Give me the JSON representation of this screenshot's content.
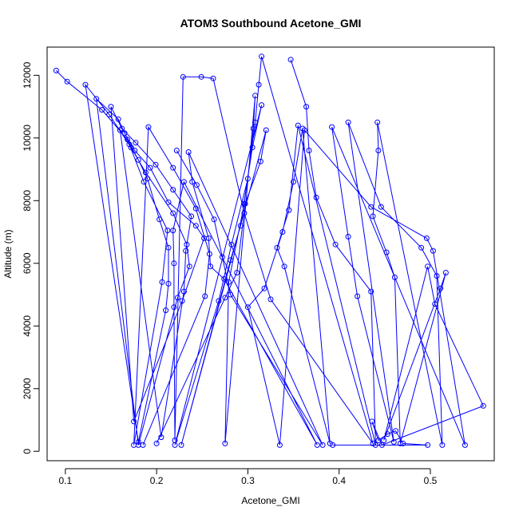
{
  "chart_data": {
    "type": "line",
    "title": "ATOM3 Southbound Acetone_GMI",
    "xlabel": "Acetone_GMI",
    "ylabel": "Altitude (m)",
    "xlim": [
      0.08,
      0.57
    ],
    "ylim": [
      -300,
      12900
    ],
    "x_ticks": [
      0.1,
      0.2,
      0.3,
      0.4,
      0.5
    ],
    "x_tick_labels": [
      "0.1",
      "0.2",
      "0.3",
      "0.4",
      "0.5"
    ],
    "y_ticks": [
      0,
      2000,
      4000,
      6000,
      8000,
      10000,
      12000
    ],
    "y_tick_labels": [
      "0",
      "2000",
      "4000",
      "6000",
      "8000",
      "10000",
      "12000"
    ],
    "grid": false,
    "series": [
      {
        "color": "#0000ff",
        "marker": "open-circle",
        "points": [
          {
            "x": 0.09,
            "y": 12150
          },
          {
            "x": 0.102,
            "y": 11800
          },
          {
            "x": 0.14,
            "y": 10900
          },
          {
            "x": 0.168,
            "y": 9950
          },
          {
            "x": 0.18,
            "y": 9300
          },
          {
            "x": 0.19,
            "y": 8700
          },
          {
            "x": 0.203,
            "y": 7400
          },
          {
            "x": 0.213,
            "y": 6500
          },
          {
            "x": 0.213,
            "y": 5350
          },
          {
            "x": 0.21,
            "y": 4500
          },
          {
            "x": 0.18,
            "y": 300
          },
          {
            "x": 0.122,
            "y": 11700
          },
          {
            "x": 0.148,
            "y": 10750
          },
          {
            "x": 0.172,
            "y": 9700
          },
          {
            "x": 0.188,
            "y": 8900
          },
          {
            "x": 0.218,
            "y": 7600
          },
          {
            "x": 0.233,
            "y": 6600
          },
          {
            "x": 0.236,
            "y": 5900
          },
          {
            "x": 0.223,
            "y": 4900
          },
          {
            "x": 0.18,
            "y": 200
          },
          {
            "x": 0.134,
            "y": 11250
          },
          {
            "x": 0.158,
            "y": 10600
          },
          {
            "x": 0.165,
            "y": 10150
          },
          {
            "x": 0.176,
            "y": 9600
          },
          {
            "x": 0.193,
            "y": 9050
          },
          {
            "x": 0.213,
            "y": 7950
          },
          {
            "x": 0.243,
            "y": 7200
          },
          {
            "x": 0.252,
            "y": 6800
          },
          {
            "x": 0.228,
            "y": 4800
          },
          {
            "x": 0.175,
            "y": 950
          },
          {
            "x": 0.15,
            "y": 11000
          },
          {
            "x": 0.162,
            "y": 10300
          },
          {
            "x": 0.177,
            "y": 9850
          },
          {
            "x": 0.199,
            "y": 9150
          },
          {
            "x": 0.218,
            "y": 8350
          },
          {
            "x": 0.238,
            "y": 7500
          },
          {
            "x": 0.232,
            "y": 6400
          },
          {
            "x": 0.23,
            "y": 5100
          },
          {
            "x": 0.205,
            "y": 450
          },
          {
            "x": 0.16,
            "y": 10250
          },
          {
            "x": 0.17,
            "y": 9800
          },
          {
            "x": 0.186,
            "y": 8600
          },
          {
            "x": 0.212,
            "y": 7050
          },
          {
            "x": 0.206,
            "y": 5400
          },
          {
            "x": 0.175,
            "y": 200
          },
          {
            "x": 0.191,
            "y": 10350
          },
          {
            "x": 0.218,
            "y": 9050
          },
          {
            "x": 0.243,
            "y": 7750
          },
          {
            "x": 0.258,
            "y": 6300
          },
          {
            "x": 0.253,
            "y": 4950
          },
          {
            "x": 0.185,
            "y": 200
          }
        ]
      },
      {
        "color": "#0000ff",
        "marker": "open-circle",
        "points": [
          {
            "x": 0.222,
            "y": 9600
          },
          {
            "x": 0.244,
            "y": 8500
          },
          {
            "x": 0.263,
            "y": 7400
          },
          {
            "x": 0.272,
            "y": 6200
          },
          {
            "x": 0.281,
            "y": 5000
          },
          {
            "x": 0.382,
            "y": 200
          },
          {
            "x": 0.235,
            "y": 9550
          },
          {
            "x": 0.239,
            "y": 8600
          },
          {
            "x": 0.257,
            "y": 6800
          },
          {
            "x": 0.259,
            "y": 5900
          },
          {
            "x": 0.274,
            "y": 5500
          },
          {
            "x": 0.376,
            "y": 200
          },
          {
            "x": 0.23,
            "y": 8600
          },
          {
            "x": 0.218,
            "y": 7050
          },
          {
            "x": 0.219,
            "y": 6000
          },
          {
            "x": 0.219,
            "y": 4600
          },
          {
            "x": 0.22,
            "y": 350
          },
          {
            "x": 0.229,
            "y": 11950
          },
          {
            "x": 0.249,
            "y": 11950
          },
          {
            "x": 0.262,
            "y": 11900
          },
          {
            "x": 0.296,
            "y": 7600
          },
          {
            "x": 0.325,
            "y": 4850
          },
          {
            "x": 0.437,
            "y": 250
          },
          {
            "x": 0.315,
            "y": 12600
          },
          {
            "x": 0.312,
            "y": 11700
          },
          {
            "x": 0.308,
            "y": 10500
          },
          {
            "x": 0.296,
            "y": 7900
          },
          {
            "x": 0.279,
            "y": 5400
          },
          {
            "x": 0.275,
            "y": 250
          },
          {
            "x": 0.308,
            "y": 11350
          },
          {
            "x": 0.306,
            "y": 10300
          },
          {
            "x": 0.3,
            "y": 8700
          },
          {
            "x": 0.282,
            "y": 6600
          },
          {
            "x": 0.268,
            "y": 4800
          },
          {
            "x": 0.22,
            "y": 200
          },
          {
            "x": 0.315,
            "y": 11050
          },
          {
            "x": 0.305,
            "y": 9700
          },
          {
            "x": 0.292,
            "y": 7200
          },
          {
            "x": 0.281,
            "y": 6100
          },
          {
            "x": 0.227,
            "y": 200
          },
          {
            "x": 0.32,
            "y": 10250
          },
          {
            "x": 0.314,
            "y": 9250
          },
          {
            "x": 0.297,
            "y": 7900
          },
          {
            "x": 0.288,
            "y": 5700
          },
          {
            "x": 0.275,
            "y": 4900
          },
          {
            "x": 0.2,
            "y": 250
          }
        ]
      },
      {
        "color": "#0000ff",
        "marker": "open-circle",
        "points": [
          {
            "x": 0.347,
            "y": 12500
          },
          {
            "x": 0.364,
            "y": 11000
          },
          {
            "x": 0.367,
            "y": 9600
          },
          {
            "x": 0.375,
            "y": 8100
          },
          {
            "x": 0.396,
            "y": 6600
          },
          {
            "x": 0.435,
            "y": 5100
          },
          {
            "x": 0.44,
            "y": 200
          },
          {
            "x": 0.355,
            "y": 10400
          },
          {
            "x": 0.345,
            "y": 7700
          },
          {
            "x": 0.332,
            "y": 6500
          },
          {
            "x": 0.34,
            "y": 5900
          },
          {
            "x": 0.39,
            "y": 250
          },
          {
            "x": 0.36,
            "y": 10300
          },
          {
            "x": 0.35,
            "y": 8600
          },
          {
            "x": 0.338,
            "y": 7000
          },
          {
            "x": 0.318,
            "y": 5200
          },
          {
            "x": 0.3,
            "y": 4600
          },
          {
            "x": 0.335,
            "y": 200
          },
          {
            "x": 0.362,
            "y": 10250
          },
          {
            "x": 0.435,
            "y": 7800
          },
          {
            "x": 0.496,
            "y": 6800
          },
          {
            "x": 0.503,
            "y": 6400
          },
          {
            "x": 0.538,
            "y": 200
          },
          {
            "x": 0.392,
            "y": 10350
          },
          {
            "x": 0.41,
            "y": 6850
          },
          {
            "x": 0.42,
            "y": 4950
          },
          {
            "x": 0.46,
            "y": 300
          },
          {
            "x": 0.41,
            "y": 10500
          },
          {
            "x": 0.446,
            "y": 7800
          },
          {
            "x": 0.49,
            "y": 6500
          },
          {
            "x": 0.507,
            "y": 5600
          },
          {
            "x": 0.513,
            "y": 200
          },
          {
            "x": 0.442,
            "y": 10500
          },
          {
            "x": 0.443,
            "y": 9600
          },
          {
            "x": 0.437,
            "y": 7500
          },
          {
            "x": 0.452,
            "y": 6350
          },
          {
            "x": 0.461,
            "y": 5550
          },
          {
            "x": 0.467,
            "y": 250
          },
          {
            "x": 0.517,
            "y": 5700
          },
          {
            "x": 0.511,
            "y": 5200
          },
          {
            "x": 0.449,
            "y": 350
          },
          {
            "x": 0.497,
            "y": 5900
          },
          {
            "x": 0.505,
            "y": 4700
          },
          {
            "x": 0.558,
            "y": 1450
          },
          {
            "x": 0.447,
            "y": 200
          },
          {
            "x": 0.436,
            "y": 950
          },
          {
            "x": 0.443,
            "y": 350
          },
          {
            "x": 0.453,
            "y": 550
          },
          {
            "x": 0.462,
            "y": 650
          },
          {
            "x": 0.47,
            "y": 250
          },
          {
            "x": 0.497,
            "y": 200
          },
          {
            "x": 0.393,
            "y": 200
          }
        ]
      }
    ]
  }
}
